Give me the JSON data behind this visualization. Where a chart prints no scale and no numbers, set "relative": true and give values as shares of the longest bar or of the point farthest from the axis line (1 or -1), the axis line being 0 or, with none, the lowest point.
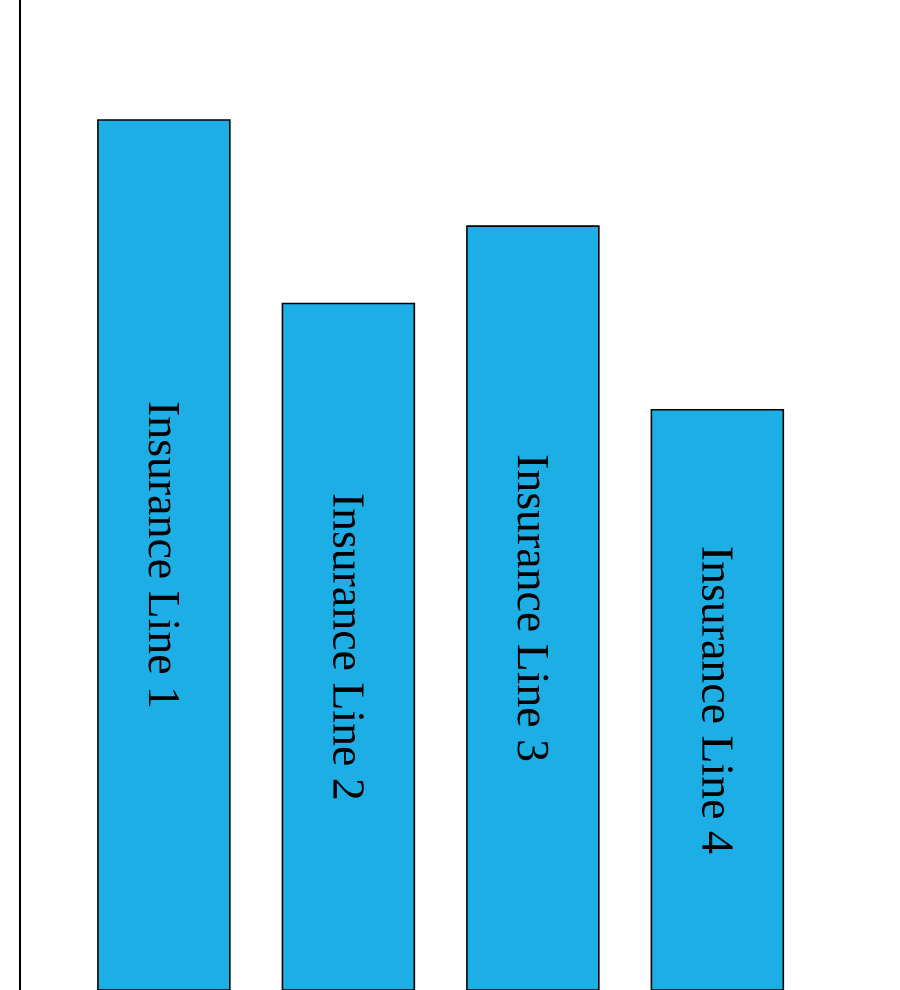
{
  "chart_data": {
    "type": "bar",
    "relative": true,
    "categories": [
      "Insurance Line 1",
      "Insurance Line 2",
      "Insurance Line 3",
      "Insurance Line 4"
    ],
    "values": [
      1,
      0.789,
      0.878,
      0.667
    ],
    "color": "#1eaee6"
  }
}
